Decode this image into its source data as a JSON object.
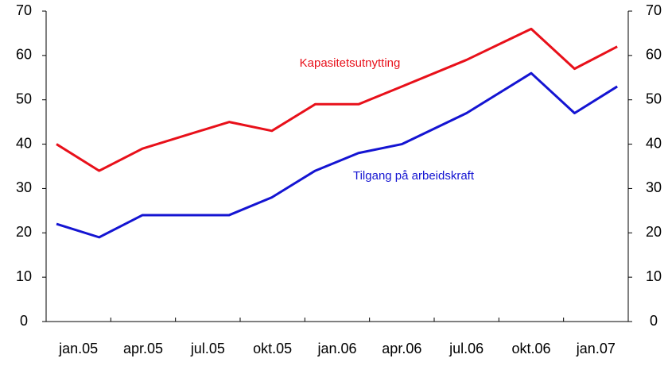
{
  "chart_data": {
    "type": "line",
    "x": [
      0.16,
      0.82,
      1.49,
      2.83,
      3.49,
      4.16,
      4.83,
      5.5,
      6.5,
      7.5,
      8.17,
      8.83
    ],
    "xlim": [
      0,
      9
    ],
    "xticks": [
      {
        "value": 0.5,
        "label": "jan.05"
      },
      {
        "value": 1.5,
        "label": "apr.05"
      },
      {
        "value": 2.5,
        "label": "jul.05"
      },
      {
        "value": 3.5,
        "label": "okt.05"
      },
      {
        "value": 4.5,
        "label": "jan.06"
      },
      {
        "value": 5.5,
        "label": "apr.06"
      },
      {
        "value": 6.5,
        "label": "jul.06"
      },
      {
        "value": 7.5,
        "label": "okt.06"
      },
      {
        "value": 8.5,
        "label": "jan.07"
      }
    ],
    "ylim": [
      0,
      70
    ],
    "yticks": [
      0,
      10,
      20,
      30,
      40,
      50,
      60,
      70
    ],
    "y2lim": [
      0,
      70
    ],
    "y2ticks": [
      0,
      10,
      20,
      30,
      40,
      50,
      60,
      70
    ],
    "grid": false,
    "series": [
      {
        "name": "Kapasitetsutnytting",
        "color": "#e8101a",
        "values": [
          40,
          34,
          39,
          45,
          43,
          49,
          49,
          53,
          59,
          66,
          57,
          62
        ]
      },
      {
        "name": "Tilgang på arbeidskraft",
        "color": "#1414d2",
        "values": [
          22,
          19,
          24,
          24,
          28,
          34,
          38,
          40,
          47,
          56,
          47,
          53
        ]
      }
    ]
  }
}
